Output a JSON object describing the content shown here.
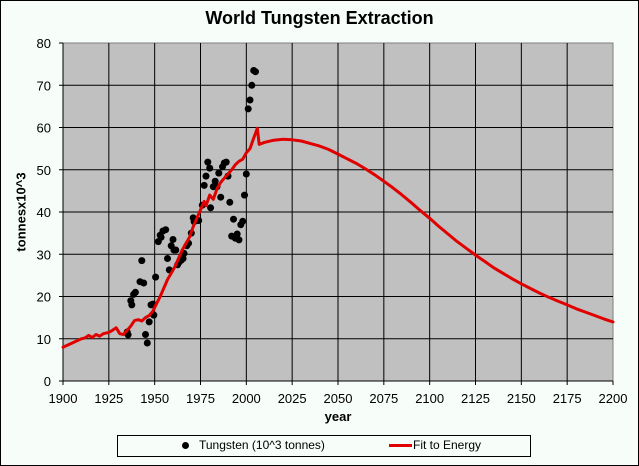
{
  "chart_data": {
    "type": "scatter+line",
    "title": "World Tungsten Extraction",
    "xlabel": "year",
    "ylabel": "tonnesx10^3",
    "xlim": [
      1900,
      2200
    ],
    "ylim": [
      0,
      80
    ],
    "x_ticks": [
      "1900",
      "1925",
      "1950",
      "1975",
      "2000",
      "2025",
      "2050",
      "2075",
      "2100",
      "2125",
      "2150",
      "2175",
      "2200"
    ],
    "y_ticks": [
      "0",
      "10",
      "20",
      "30",
      "40",
      "50",
      "60",
      "70",
      "80"
    ],
    "grid": true,
    "legend_position": "bottom",
    "series": [
      {
        "name": "Tungsten (10^3 tonnes)",
        "kind": "scatter",
        "color": "#000000",
        "points": [
          [
            1935,
            11.6
          ],
          [
            1935.5,
            10.9
          ],
          [
            1937,
            19
          ],
          [
            1937.5,
            18
          ],
          [
            1938.5,
            20.5
          ],
          [
            1939.5,
            21
          ],
          [
            1942,
            23.5
          ],
          [
            1943,
            28.5
          ],
          [
            1944,
            23.2
          ],
          [
            1945,
            11
          ],
          [
            1946,
            9
          ],
          [
            1947,
            14
          ],
          [
            1948,
            18
          ],
          [
            1949,
            18.2
          ],
          [
            1949.5,
            15.6
          ],
          [
            1950.5,
            24.6
          ],
          [
            1952,
            33
          ],
          [
            1953,
            34.5
          ],
          [
            1953.5,
            34
          ],
          [
            1954.5,
            35.5
          ],
          [
            1956,
            35.8
          ],
          [
            1957,
            29
          ],
          [
            1958,
            26.3
          ],
          [
            1959,
            32
          ],
          [
            1960,
            33.5
          ],
          [
            1960.5,
            31
          ],
          [
            1961.5,
            31
          ],
          [
            1962.5,
            27.5
          ],
          [
            1963.5,
            28.2
          ],
          [
            1964.5,
            28.6
          ],
          [
            1965.5,
            29
          ],
          [
            1966,
            30.2
          ],
          [
            1967.5,
            32
          ],
          [
            1968.5,
            32.6
          ],
          [
            1970,
            35
          ],
          [
            1971,
            38.6
          ],
          [
            1971.5,
            37.7
          ],
          [
            1973,
            38
          ],
          [
            1974,
            38
          ],
          [
            1976,
            41.6
          ],
          [
            1977,
            46.3
          ],
          [
            1978,
            48.5
          ],
          [
            1979,
            51.8
          ],
          [
            1980,
            50.4
          ],
          [
            1980.5,
            41
          ],
          [
            1982,
            46
          ],
          [
            1983,
            47.3
          ],
          [
            1984,
            46
          ],
          [
            1985,
            49.2
          ],
          [
            1986,
            43.5
          ],
          [
            1987,
            50.7
          ],
          [
            1988,
            51.6
          ],
          [
            1989,
            51.8
          ],
          [
            1990,
            48.5
          ],
          [
            1991,
            42.3
          ],
          [
            1992,
            34.3
          ],
          [
            1993,
            38.3
          ],
          [
            1994,
            33.8
          ],
          [
            1995,
            34.8
          ],
          [
            1996,
            33.4
          ],
          [
            1997,
            37
          ],
          [
            1998,
            37.8
          ],
          [
            1999,
            44
          ],
          [
            2000,
            49
          ],
          [
            2001,
            64.4
          ],
          [
            2002,
            66.5
          ],
          [
            2003,
            70
          ],
          [
            2004,
            73.5
          ],
          [
            2005,
            73.2
          ]
        ]
      },
      {
        "name": "Fit to Energy",
        "kind": "line",
        "color": "#e00000",
        "points": [
          [
            1900,
            8
          ],
          [
            1905,
            9
          ],
          [
            1910,
            10
          ],
          [
            1912,
            10.2
          ],
          [
            1914,
            10.8
          ],
          [
            1916,
            10.3
          ],
          [
            1918,
            11
          ],
          [
            1920,
            10.6
          ],
          [
            1922,
            11.2
          ],
          [
            1925,
            11.5
          ],
          [
            1927,
            12
          ],
          [
            1929,
            12.6
          ],
          [
            1931,
            11.2
          ],
          [
            1933,
            11
          ],
          [
            1935,
            12
          ],
          [
            1937,
            13
          ],
          [
            1939,
            14.3
          ],
          [
            1941,
            14.5
          ],
          [
            1943,
            14.2
          ],
          [
            1945,
            15
          ],
          [
            1947,
            15.5
          ],
          [
            1949,
            16.5
          ],
          [
            1951,
            18.3
          ],
          [
            1953,
            20
          ],
          [
            1955,
            22
          ],
          [
            1957,
            24
          ],
          [
            1959,
            25.5
          ],
          [
            1961,
            27
          ],
          [
            1963,
            29
          ],
          [
            1965,
            31
          ],
          [
            1967,
            32.5
          ],
          [
            1969,
            34
          ],
          [
            1971,
            36.5
          ],
          [
            1973,
            38.5
          ],
          [
            1975,
            40.5
          ],
          [
            1977,
            42.5
          ],
          [
            1978,
            41.5
          ],
          [
            1980,
            44
          ],
          [
            1982,
            43
          ],
          [
            1984,
            45.5
          ],
          [
            1986,
            47
          ],
          [
            1988,
            48
          ],
          [
            1990,
            49
          ],
          [
            1992,
            50
          ],
          [
            1994,
            51.2
          ],
          [
            1996,
            52
          ],
          [
            1998,
            52.5
          ],
          [
            2000,
            54
          ],
          [
            2002,
            55
          ],
          [
            2004,
            57.5
          ],
          [
            2006,
            59.8
          ],
          [
            2007,
            56
          ],
          [
            2010,
            56.5
          ],
          [
            2015,
            57
          ],
          [
            2020,
            57.2
          ],
          [
            2025,
            57.1
          ],
          [
            2030,
            56.8
          ],
          [
            2035,
            56.2
          ],
          [
            2040,
            55.6
          ],
          [
            2045,
            54.8
          ],
          [
            2050,
            53.7
          ],
          [
            2055,
            52.6
          ],
          [
            2060,
            51.5
          ],
          [
            2065,
            50.2
          ],
          [
            2070,
            48.8
          ],
          [
            2075,
            47.3
          ],
          [
            2080,
            45.7
          ],
          [
            2085,
            44
          ],
          [
            2090,
            42.2
          ],
          [
            2095,
            40.3
          ],
          [
            2100,
            38.5
          ],
          [
            2105,
            36.6
          ],
          [
            2110,
            34.8
          ],
          [
            2115,
            33
          ],
          [
            2120,
            31.4
          ],
          [
            2125,
            29.8
          ],
          [
            2130,
            28.3
          ],
          [
            2135,
            26.8
          ],
          [
            2140,
            25.5
          ],
          [
            2145,
            24.2
          ],
          [
            2150,
            23
          ],
          [
            2155,
            21.9
          ],
          [
            2160,
            20.8
          ],
          [
            2165,
            19.8
          ],
          [
            2170,
            18.9
          ],
          [
            2175,
            18
          ],
          [
            2180,
            17.1
          ],
          [
            2185,
            16.3
          ],
          [
            2190,
            15.5
          ],
          [
            2195,
            14.7
          ],
          [
            2200,
            14
          ]
        ]
      }
    ]
  }
}
